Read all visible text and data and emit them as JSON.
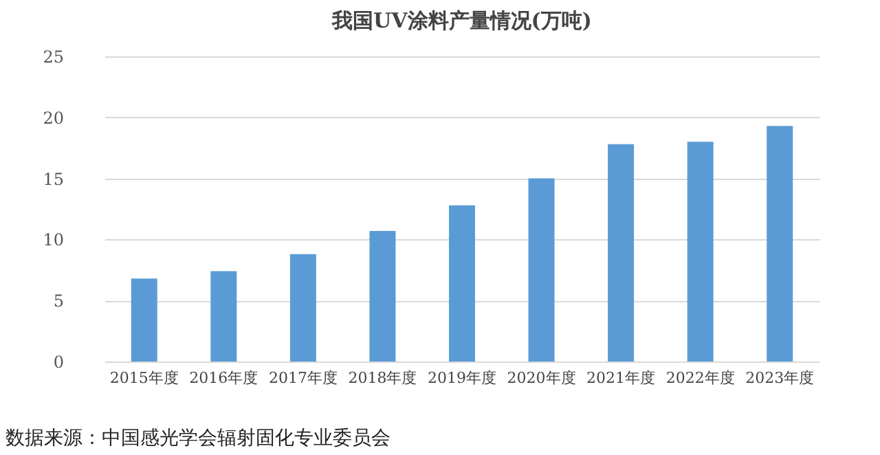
{
  "chart_data": {
    "type": "bar",
    "title": "我国UV涂料产量情况(万吨)",
    "categories": [
      "2015年度",
      "2016年度",
      "2017年度",
      "2018年度",
      "2019年度",
      "2020年度",
      "2021年度",
      "2022年度",
      "2023年度"
    ],
    "values": [
      6.8,
      7.4,
      8.8,
      10.7,
      12.8,
      15.0,
      17.8,
      18.0,
      19.3
    ],
    "color": "#5b9bd5",
    "ylim": [
      0,
      25
    ],
    "yticks": [
      0,
      5,
      10,
      15,
      20,
      25
    ],
    "grid": "y",
    "annotations": [
      "数据来源：中国感光学会辐射固化专业委员会"
    ]
  }
}
